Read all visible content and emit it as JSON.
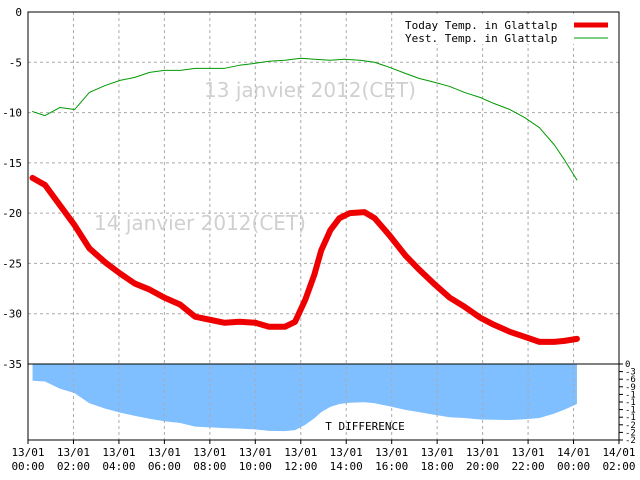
{
  "chart_data": [
    {
      "type": "line",
      "annotations": [
        "13 janvier 2012(CET)",
        "14 janvier 2012(CET)"
      ],
      "xlim": [
        0,
        26
      ],
      "xticks": [
        {
          "value": 0,
          "label": [
            "13/01",
            "00:00"
          ]
        },
        {
          "value": 2,
          "label": [
            "13/01",
            "02:00"
          ]
        },
        {
          "value": 4,
          "label": [
            "13/01",
            "04:00"
          ]
        },
        {
          "value": 6,
          "label": [
            "13/01",
            "06:00"
          ]
        },
        {
          "value": 8,
          "label": [
            "13/01",
            "08:00"
          ]
        },
        {
          "value": 10,
          "label": [
            "13/01",
            "10:00"
          ]
        },
        {
          "value": 12,
          "label": [
            "13/01",
            "12:00"
          ]
        },
        {
          "value": 14,
          "label": [
            "13/01",
            "14:00"
          ]
        },
        {
          "value": 16,
          "label": [
            "13/01",
            "16:00"
          ]
        },
        {
          "value": 18,
          "label": [
            "13/01",
            "18:00"
          ]
        },
        {
          "value": 20,
          "label": [
            "13/01",
            "20:00"
          ]
        },
        {
          "value": 22,
          "label": [
            "13/01",
            "22:00"
          ]
        },
        {
          "value": 24,
          "label": [
            "14/01",
            "00:00"
          ]
        },
        {
          "value": 26,
          "label": [
            "14/01",
            "02:00"
          ]
        }
      ],
      "ylim": [
        -35,
        0
      ],
      "yticks": [
        0,
        -5,
        -10,
        -15,
        -20,
        -25,
        -30,
        -35
      ],
      "grid": true,
      "legend": "top-right",
      "series": [
        {
          "name": "Today Temp. in Glattalp",
          "color": "#ee0000",
          "x": [
            0.2,
            0.75,
            1.4,
            2.05,
            2.7,
            3.4,
            4.05,
            4.7,
            5.35,
            6,
            6.7,
            7.35,
            8,
            8.65,
            9.3,
            10,
            10.6,
            11.3,
            11.75,
            12.2,
            12.6,
            12.9,
            13.3,
            13.7,
            14.15,
            14.8,
            15.25,
            15.9,
            16.6,
            17.2,
            17.9,
            18.55,
            19.2,
            19.9,
            20.5,
            21.2,
            21.85,
            22.5,
            23.15,
            23.6,
            24.15
          ],
          "values": [
            -16.5,
            -17.2,
            -19.2,
            -21.2,
            -23.5,
            -24.9,
            -26,
            -27,
            -27.6,
            -28.4,
            -29.1,
            -30.3,
            -30.6,
            -30.9,
            -30.8,
            -30.9,
            -31.3,
            -31.3,
            -30.8,
            -28.6,
            -26.1,
            -23.7,
            -21.7,
            -20.5,
            -20,
            -19.9,
            -20.5,
            -22.2,
            -24.2,
            -25.6,
            -27.1,
            -28.4,
            -29.3,
            -30.4,
            -31.1,
            -31.8,
            -32.3,
            -32.8,
            -32.8,
            -32.7,
            -32.5
          ]
        },
        {
          "name": "Yest. Temp. in Glattalp",
          "color": "#009900",
          "x": [
            0.2,
            0.75,
            1.4,
            2.05,
            2.7,
            3.4,
            4.05,
            4.7,
            5.35,
            6,
            6.7,
            7.35,
            8,
            8.65,
            9.3,
            10,
            10.6,
            11.3,
            12,
            12.6,
            13.3,
            13.9,
            14.6,
            15.25,
            15.9,
            16.6,
            17.2,
            17.9,
            18.55,
            19.2,
            19.9,
            20.5,
            21.2,
            21.85,
            22.5,
            23.15,
            23.6,
            24.15
          ],
          "values": [
            -9.9,
            -10.3,
            -9.5,
            -9.7,
            -8,
            -7.3,
            -6.8,
            -6.5,
            -6,
            -5.8,
            -5.8,
            -5.6,
            -5.6,
            -5.6,
            -5.3,
            -5.1,
            -4.9,
            -4.8,
            -4.6,
            -4.7,
            -4.8,
            -4.7,
            -4.8,
            -5,
            -5.5,
            -6.1,
            -6.6,
            -7,
            -7.4,
            -8,
            -8.5,
            -9.1,
            -9.7,
            -10.5,
            -11.5,
            -13.2,
            -14.7,
            -16.7
          ]
        }
      ]
    },
    {
      "type": "area",
      "label": "T DIFFERENCE",
      "color": "#80bfff",
      "xlim": [
        0,
        26
      ],
      "ylim": [
        -30,
        0
      ],
      "yticks": [
        0,
        -3,
        -6,
        -9,
        {
          "value": -12,
          "label": "-1"
        },
        {
          "value": -15,
          "label": "-1"
        },
        {
          "value": -18,
          "label": "-1"
        },
        {
          "value": -21,
          "label": "-1"
        },
        {
          "value": -24,
          "label": "-2"
        },
        {
          "value": -27,
          "label": "-2"
        },
        {
          "value": -30,
          "label": "-2"
        }
      ],
      "x": [
        0.2,
        0.75,
        1.4,
        2.05,
        2.7,
        3.4,
        4.05,
        4.7,
        5.35,
        6,
        6.7,
        7.35,
        8,
        8.65,
        9.3,
        10,
        10.6,
        11.3,
        11.75,
        12.2,
        12.6,
        12.9,
        13.3,
        13.7,
        14.15,
        14.8,
        15.25,
        15.9,
        16.6,
        17.2,
        17.9,
        18.55,
        19.2,
        19.9,
        20.5,
        21.2,
        21.85,
        22.5,
        23.15,
        23.6,
        24.15
      ],
      "values": [
        -6.6,
        -6.9,
        -9.7,
        -11.5,
        -15.5,
        -17.6,
        -19.2,
        -20.5,
        -21.6,
        -22.6,
        -23.3,
        -24.7,
        -25,
        -25.3,
        -25.5,
        -25.8,
        -26.4,
        -26.5,
        -26.1,
        -24,
        -21.4,
        -19,
        -16.9,
        -15.8,
        -15.3,
        -15.1,
        -15.5,
        -16.7,
        -18.1,
        -19,
        -20.1,
        -21,
        -21.3,
        -21.9,
        -22,
        -22.1,
        -21.8,
        -21.3,
        -19.6,
        -18,
        -15.8
      ]
    }
  ]
}
